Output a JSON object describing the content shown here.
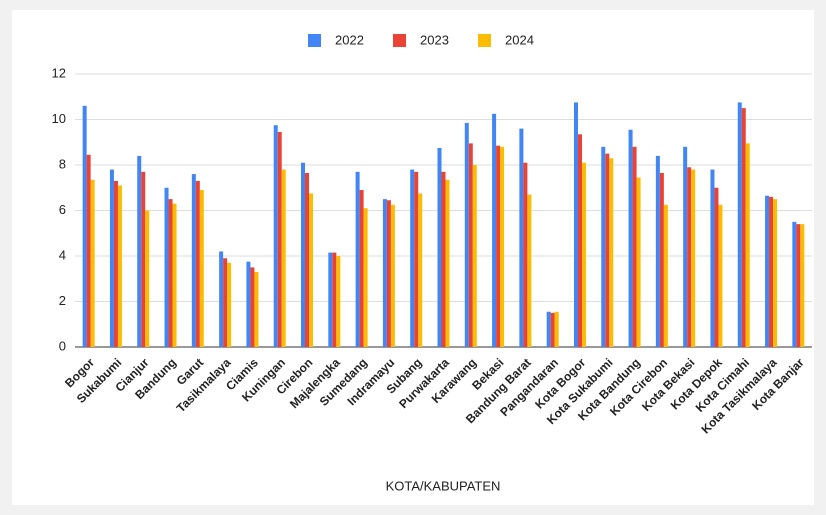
{
  "chart_data": {
    "type": "bar",
    "categories": [
      "Bogor",
      "Sukabumi",
      "Cianjur",
      "Bandung",
      "Garut",
      "Tasikmalaya",
      "Ciamis",
      "Kuningan",
      "Cirebon",
      "Majalengka",
      "Sumedang",
      "Indramayu",
      "Subang",
      "Purwakarta",
      "Karawang",
      "Bekasi",
      "Bandung Barat",
      "Pangandaran",
      "Kota Bogor",
      "Kota Sukabumi",
      "Kota Bandung",
      "Kota Cirebon",
      "Kota Bekasi",
      "Kota Depok",
      "Kota Cimahi",
      "Kota Tasikmalaya",
      "Kota Banjar"
    ],
    "series": [
      {
        "name": "2022",
        "color": "#4285f4",
        "values": [
          10.6,
          7.8,
          8.4,
          7.0,
          7.6,
          4.2,
          3.75,
          9.75,
          8.1,
          4.15,
          7.7,
          6.5,
          7.8,
          8.75,
          9.85,
          10.25,
          9.6,
          1.55,
          10.75,
          8.8,
          9.55,
          8.4,
          8.8,
          7.8,
          10.75,
          6.65,
          5.5
        ]
      },
      {
        "name": "2023",
        "color": "#ea4335",
        "values": [
          8.45,
          7.3,
          7.7,
          6.5,
          7.3,
          3.9,
          3.5,
          9.45,
          7.65,
          4.15,
          6.9,
          6.45,
          7.7,
          7.7,
          8.95,
          8.85,
          8.1,
          1.5,
          9.35,
          8.5,
          8.8,
          7.65,
          7.9,
          7.0,
          10.5,
          6.6,
          5.4
        ]
      },
      {
        "name": "2024",
        "color": "#fbbc04",
        "values": [
          7.35,
          7.1,
          6.0,
          6.3,
          6.9,
          3.7,
          3.3,
          7.8,
          6.75,
          4.0,
          6.1,
          6.25,
          6.75,
          7.35,
          8.0,
          8.8,
          6.7,
          1.55,
          8.1,
          8.3,
          7.45,
          6.25,
          7.8,
          6.25,
          8.95,
          6.5,
          5.4
        ]
      }
    ],
    "x_label": "KOTA/KABUPATEN",
    "ylim": [
      0,
      12
    ],
    "yticks": [
      0,
      2,
      4,
      6,
      8,
      10,
      12
    ],
    "grid": true,
    "legend": "top"
  }
}
